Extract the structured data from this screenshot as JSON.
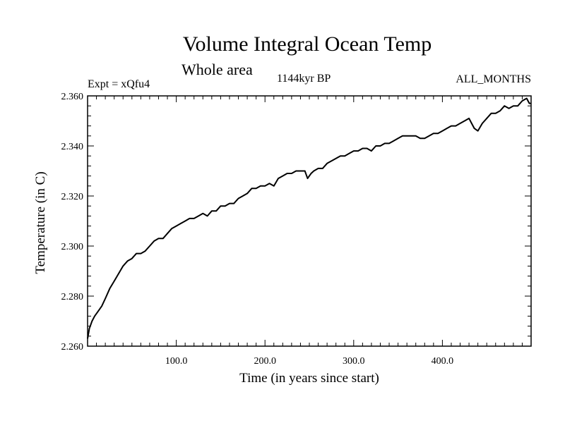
{
  "chart_data": {
    "type": "line",
    "title": "Volume Integral Ocean Temp",
    "subtitle": "Whole area",
    "annotations": {
      "experiment": "Expt = xQfu4",
      "period": "1144kyr BP",
      "months": "ALL_MONTHS"
    },
    "xlabel": "Time (in years since start)",
    "ylabel": "Temperature (in C)",
    "xlim": [
      0,
      500
    ],
    "ylim": [
      2.26,
      2.36
    ],
    "x_ticks": [
      100,
      200,
      300,
      400
    ],
    "x_tick_labels": [
      "100.0",
      "200.0",
      "300.0",
      "400.0"
    ],
    "y_ticks": [
      2.26,
      2.28,
      2.3,
      2.32,
      2.34,
      2.36
    ],
    "y_tick_labels": [
      "2.260",
      "2.280",
      "2.300",
      "2.320",
      "2.340",
      "2.360"
    ],
    "series": [
      {
        "name": "Volume Integral Ocean Temp",
        "x": [
          0,
          2,
          5,
          8,
          12,
          16,
          20,
          25,
          30,
          35,
          40,
          45,
          50,
          55,
          60,
          65,
          70,
          75,
          80,
          85,
          90,
          95,
          100,
          105,
          110,
          115,
          120,
          125,
          130,
          135,
          140,
          145,
          150,
          155,
          160,
          165,
          170,
          175,
          180,
          185,
          190,
          195,
          200,
          205,
          210,
          215,
          220,
          225,
          230,
          235,
          240,
          245,
          248,
          252,
          255,
          260,
          265,
          270,
          275,
          280,
          285,
          290,
          295,
          300,
          305,
          310,
          315,
          320,
          325,
          330,
          335,
          340,
          345,
          350,
          355,
          360,
          365,
          370,
          375,
          380,
          385,
          390,
          395,
          400,
          405,
          410,
          415,
          420,
          425,
          430,
          433,
          436,
          440,
          445,
          450,
          455,
          460,
          465,
          470,
          475,
          480,
          485,
          490,
          495,
          498,
          500
        ],
        "y": [
          2.263,
          2.267,
          2.27,
          2.272,
          2.274,
          2.276,
          2.279,
          2.283,
          2.286,
          2.289,
          2.292,
          2.294,
          2.295,
          2.297,
          2.297,
          2.298,
          2.3,
          2.302,
          2.303,
          2.303,
          2.305,
          2.307,
          2.308,
          2.309,
          2.31,
          2.311,
          2.311,
          2.312,
          2.313,
          2.312,
          2.314,
          2.314,
          2.316,
          2.316,
          2.317,
          2.317,
          2.319,
          2.32,
          2.321,
          2.323,
          2.323,
          2.324,
          2.324,
          2.325,
          2.324,
          2.327,
          2.328,
          2.329,
          2.329,
          2.33,
          2.33,
          2.33,
          2.327,
          2.329,
          2.33,
          2.331,
          2.331,
          2.333,
          2.334,
          2.335,
          2.336,
          2.336,
          2.337,
          2.338,
          2.338,
          2.339,
          2.339,
          2.338,
          2.34,
          2.34,
          2.341,
          2.341,
          2.342,
          2.343,
          2.344,
          2.344,
          2.344,
          2.344,
          2.343,
          2.343,
          2.344,
          2.345,
          2.345,
          2.346,
          2.347,
          2.348,
          2.348,
          2.349,
          2.35,
          2.351,
          2.349,
          2.347,
          2.346,
          2.349,
          2.351,
          2.353,
          2.353,
          2.354,
          2.356,
          2.355,
          2.356,
          2.356,
          2.358,
          2.359,
          2.357,
          2.357
        ]
      }
    ]
  }
}
